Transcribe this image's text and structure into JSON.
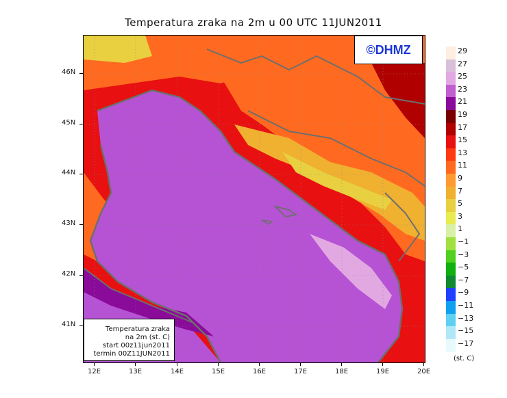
{
  "title": "Temperatura zraka na 2m u 00 UTC 11JUN2011",
  "copyright": "©DHMZ",
  "info_box": {
    "line1": "Temperatura zraka",
    "line2": "na 2m (st. C)",
    "line3": "start 00z11jun2011",
    "line4": "termin 00Z11JUN2011"
  },
  "axes": {
    "lat_labels": [
      "46N",
      "45N",
      "44N",
      "43N",
      "42N",
      "41N"
    ],
    "lon_labels": [
      "12E",
      "13E",
      "14E",
      "15E",
      "16E",
      "17E",
      "18E",
      "19E",
      "20E"
    ]
  },
  "legend": {
    "unit": "(st. C)",
    "labels": [
      "29",
      "27",
      "25",
      "23",
      "21",
      "19",
      "17",
      "15",
      "13",
      "11",
      "9",
      "7",
      "5",
      "3",
      "1",
      "−1",
      "−3",
      "−5",
      "−7",
      "−9",
      "−11",
      "−13",
      "−15",
      "−17"
    ],
    "colors": [
      "#fdeee0",
      "#d9c0d9",
      "#e2a8e2",
      "#c060d0",
      "#8a0a9a",
      "#7a0000",
      "#b00000",
      "#e81010",
      "#ff3a10",
      "#ff6a20",
      "#ff9a30",
      "#f0b030",
      "#e8d040",
      "#e8ec50",
      "#d8f0a8",
      "#a0e040",
      "#50d020",
      "#10b010",
      "#108a30",
      "#2040ff",
      "#10a0f0",
      "#60d0f0",
      "#b0e8f8",
      "#e8fafc"
    ]
  },
  "colors": {
    "sea": "#b653d4",
    "deep_sea_edge": "#8a0a9a",
    "coastline": "#6e6e6e",
    "warm_coast": "#e81010",
    "inland_hot": "#ff6a20",
    "inland_mild": "#f0b030",
    "inland_cool": "#e8d040",
    "mountain_cold": "#b00000",
    "light_sea": "#e2a8e2"
  }
}
